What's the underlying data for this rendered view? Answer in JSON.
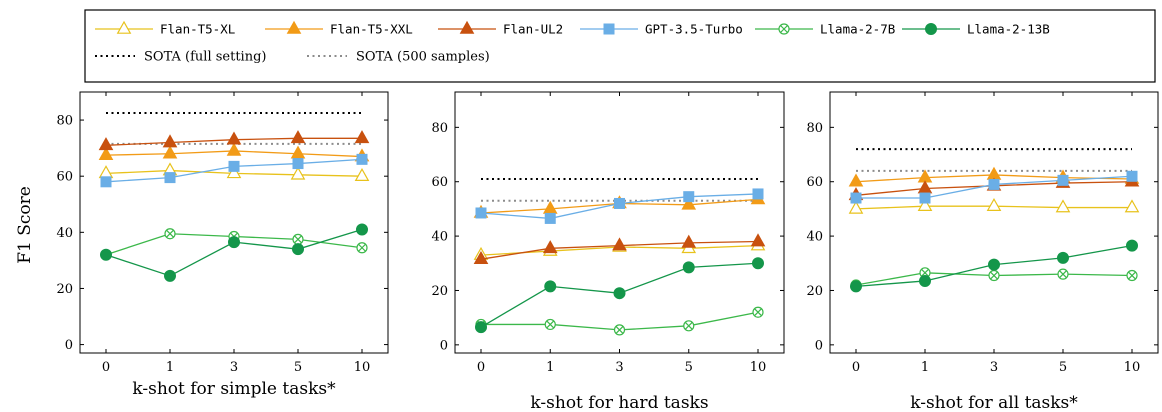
{
  "legend": {
    "series": [
      "Flan-T5-XL",
      "Flan-T5-XXL",
      "Flan-UL2",
      "GPT-3.5-Turbo",
      "Llama-2-7B",
      "Llama-2-13B"
    ],
    "sota": [
      "SOTA (full setting)",
      "SOTA (500 samples)"
    ]
  },
  "y_label": "F1 Score",
  "colors": {
    "Flan-T5-XL": "#e8c21c",
    "Flan-T5-XXL": "#f29b17",
    "Flan-UL2": "#c8510f",
    "GPT-3.5-Turbo": "#6aaee6",
    "Llama-2-7B": "#3cb84a",
    "Llama-2-13B": "#14964a",
    "SOTA (full setting)": "#000000",
    "SOTA (500 samples)": "#8c8c8c"
  },
  "chart_data": [
    {
      "type": "line",
      "xlabel": "k-shot for simple tasks*",
      "ylabel": "F1 Score",
      "categories": [
        "0",
        "1",
        "3",
        "5",
        "10"
      ],
      "ylim": [
        -3,
        90
      ],
      "yticks": [
        0,
        20,
        40,
        60,
        80
      ],
      "sota_full": 82.5,
      "sota_500": 71.5,
      "series": [
        {
          "name": "Flan-T5-XL",
          "values": [
            61,
            62,
            61,
            60.5,
            60
          ]
        },
        {
          "name": "Flan-T5-XXL",
          "values": [
            67.5,
            68,
            69,
            68,
            67
          ]
        },
        {
          "name": "Flan-UL2",
          "values": [
            71,
            72,
            73,
            73.5,
            73.5
          ]
        },
        {
          "name": "GPT-3.5-Turbo",
          "values": [
            58,
            59.5,
            63.5,
            64.5,
            66
          ]
        },
        {
          "name": "Llama-2-7B",
          "values": [
            32,
            39.5,
            38.5,
            37.5,
            34.5
          ]
        },
        {
          "name": "Llama-2-13B",
          "values": [
            32,
            24.5,
            36.5,
            34,
            41
          ]
        }
      ]
    },
    {
      "type": "line",
      "xlabel": "k-shot for hard tasks",
      "ylabel": "",
      "categories": [
        "0",
        "1",
        "3",
        "5",
        "10"
      ],
      "ylim": [
        -3,
        93
      ],
      "yticks": [
        0,
        20,
        40,
        60,
        80
      ],
      "sota_full": 61,
      "sota_500": 53,
      "series": [
        {
          "name": "Flan-T5-XL",
          "values": [
            33,
            34.5,
            36,
            35.5,
            36.5
          ]
        },
        {
          "name": "Flan-T5-XXL",
          "values": [
            48.5,
            50,
            52,
            51.5,
            53.5
          ]
        },
        {
          "name": "Flan-UL2",
          "values": [
            31.5,
            35.5,
            36.5,
            37.5,
            38
          ]
        },
        {
          "name": "GPT-3.5-Turbo",
          "values": [
            48.5,
            46.5,
            52,
            54.5,
            55.5
          ]
        },
        {
          "name": "Llama-2-7B",
          "values": [
            7.5,
            7.5,
            5.5,
            7,
            12
          ]
        },
        {
          "name": "Llama-2-13B",
          "values": [
            6.5,
            21.5,
            19,
            28.5,
            30
          ]
        }
      ]
    },
    {
      "type": "line",
      "xlabel": "k-shot for all tasks*",
      "ylabel": "",
      "categories": [
        "0",
        "1",
        "3",
        "5",
        "10"
      ],
      "ylim": [
        -3,
        93
      ],
      "yticks": [
        0,
        20,
        40,
        60,
        80
      ],
      "sota_full": 72,
      "sota_500": 64,
      "series": [
        {
          "name": "Flan-T5-XL",
          "values": [
            50,
            51,
            51,
            50.5,
            50.5
          ]
        },
        {
          "name": "Flan-T5-XXL",
          "values": [
            60,
            61.5,
            62.5,
            61.5,
            61
          ]
        },
        {
          "name": "Flan-UL2",
          "values": [
            55,
            57.5,
            58.5,
            59.5,
            60
          ]
        },
        {
          "name": "GPT-3.5-Turbo",
          "values": [
            54,
            54,
            59,
            60.5,
            62
          ]
        },
        {
          "name": "Llama-2-7B",
          "values": [
            22,
            26.5,
            25.5,
            26,
            25.5
          ]
        },
        {
          "name": "Llama-2-13B",
          "values": [
            21.5,
            23.5,
            29.5,
            32,
            36.5
          ]
        }
      ]
    }
  ]
}
